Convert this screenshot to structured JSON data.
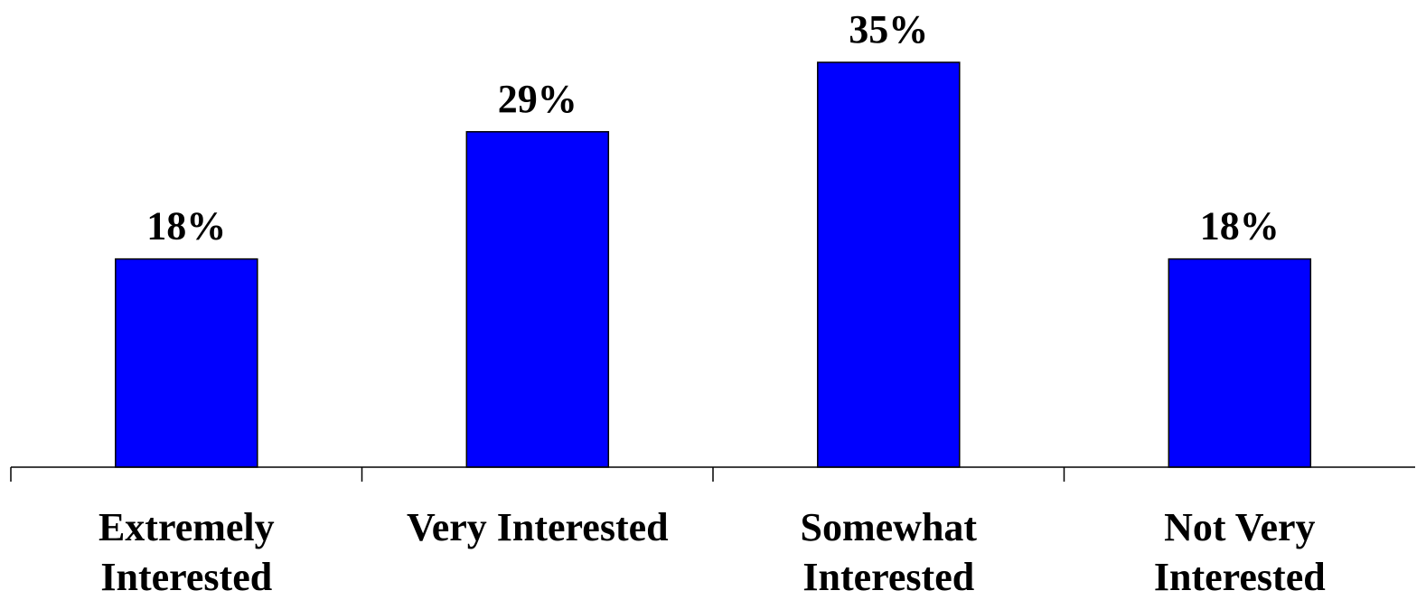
{
  "colors": {
    "bar": "#0000FF",
    "background": "#FFFFFF",
    "text": "#000000"
  },
  "chart_data": {
    "type": "bar",
    "categories": [
      [
        "Extremely",
        "Interested"
      ],
      [
        "Very Interested"
      ],
      [
        "Somewhat",
        "Interested"
      ],
      [
        "Not Very",
        "Interested"
      ]
    ],
    "values": [
      18,
      29,
      35,
      18
    ],
    "value_labels": [
      "18%",
      "29%",
      "35%",
      "18%"
    ],
    "title": "",
    "xlabel": "",
    "ylabel": "",
    "ylim": [
      0,
      35
    ],
    "grid": false,
    "legend": "none"
  }
}
